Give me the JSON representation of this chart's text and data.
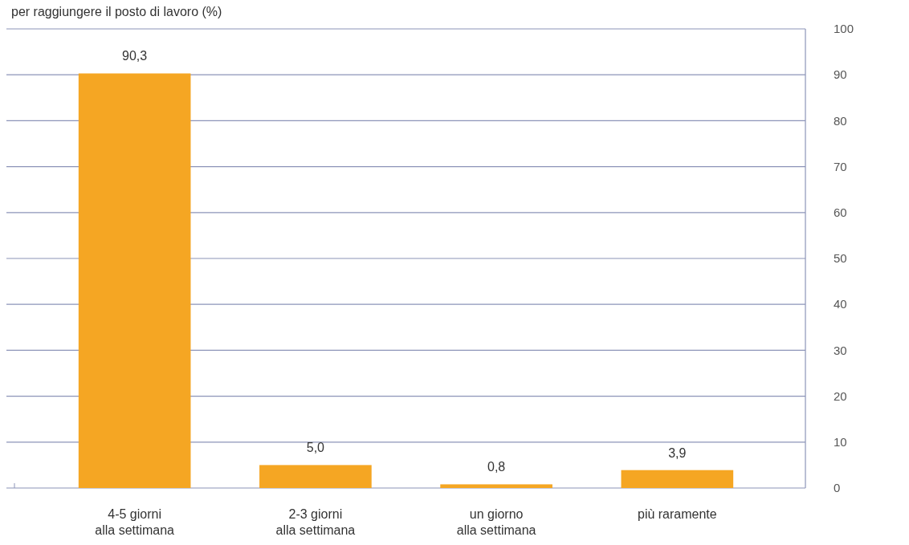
{
  "chart_data": {
    "type": "bar",
    "title": "per raggiungere il posto di lavoro (%)",
    "categories": [
      "4-5 giorni\nalla settimana",
      "2-3 giorni\nalla settimana",
      "un giorno\nalla settimana",
      "più raramente"
    ],
    "values": [
      90.3,
      5.0,
      0.8,
      3.9
    ],
    "value_labels": [
      "90,3",
      "5,0",
      "0,8",
      "3,9"
    ],
    "color": "#f5a623",
    "ylim": [
      0,
      100
    ],
    "yticks": [
      0,
      10,
      20,
      30,
      40,
      50,
      60,
      70,
      80,
      90,
      100
    ],
    "grid": "y"
  }
}
